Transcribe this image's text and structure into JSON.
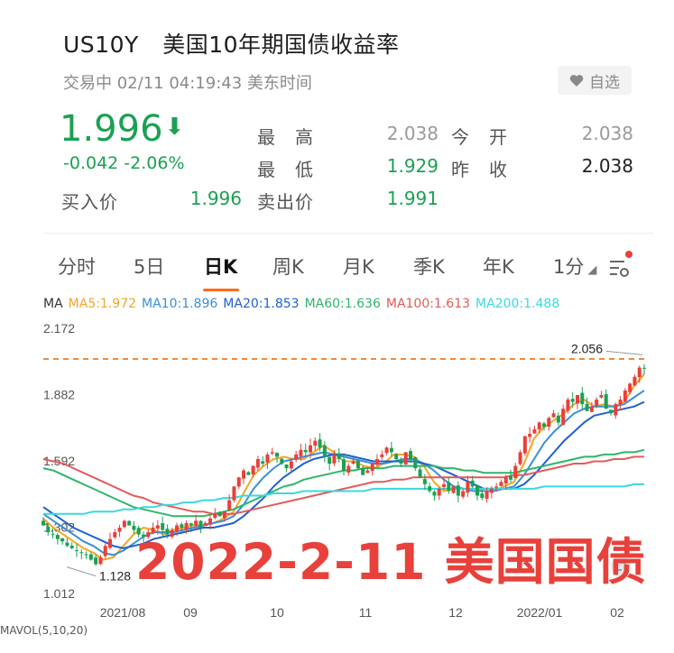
{
  "header": {
    "symbol": "US10Y",
    "name": "美国10年期国债收益率",
    "status": "交易中 02/11 04:19:43 美东时间",
    "watch_label": "自选"
  },
  "quote": {
    "last": "1.996",
    "arrow": "⬇",
    "change": "-0.042  -2.06%",
    "high_label": "最　高",
    "high": "2.038",
    "open_label": "今　开",
    "open": "2.038",
    "low_label": "最　低",
    "low": "1.929",
    "prev_close_label": "昨　收",
    "prev_close": "2.038",
    "bid_label": "买入价",
    "bid": "1.996",
    "ask_label": "卖出价",
    "ask": "1.991"
  },
  "tabs": [
    {
      "label": "分时"
    },
    {
      "label": "5日"
    },
    {
      "label": "日K",
      "active": true
    },
    {
      "label": "周K"
    },
    {
      "label": "月K"
    },
    {
      "label": "季K"
    },
    {
      "label": "年K"
    },
    {
      "label": "1分"
    }
  ],
  "ma_legend": [
    {
      "label": "MA",
      "color": "#333333"
    },
    {
      "label": "MA5:1.972",
      "color": "#f5a623"
    },
    {
      "label": "MA10:1.896",
      "color": "#3a8fd9"
    },
    {
      "label": "MA20:1.853",
      "color": "#1f5fd1"
    },
    {
      "label": "MA60:1.636",
      "color": "#2fb56a"
    },
    {
      "label": "MA100:1.613",
      "color": "#e35a5a"
    },
    {
      "label": "MA200:1.488",
      "color": "#3ad8e0"
    }
  ],
  "chart_data": {
    "type": "candlestick",
    "y_ticks": [
      "2.172",
      "1.882",
      "1.592",
      "1.302",
      "1.012"
    ],
    "ylim": [
      1.012,
      2.172
    ],
    "x_ticks": [
      "2021/08",
      "09",
      "10",
      "11",
      "12",
      "2022/01",
      "02"
    ],
    "reference_line": 2.038,
    "annotations": [
      {
        "text": "2.056",
        "value": 2.056
      },
      {
        "text": "1.128",
        "value": 1.128
      }
    ],
    "candle_closes": [
      1.31,
      1.28,
      1.27,
      1.25,
      1.24,
      1.22,
      1.21,
      1.2,
      1.19,
      1.18,
      1.16,
      1.14,
      1.17,
      1.22,
      1.25,
      1.28,
      1.3,
      1.33,
      1.31,
      1.29,
      1.27,
      1.26,
      1.28,
      1.3,
      1.31,
      1.29,
      1.27,
      1.29,
      1.31,
      1.3,
      1.32,
      1.31,
      1.33,
      1.3,
      1.32,
      1.34,
      1.36,
      1.35,
      1.37,
      1.42,
      1.48,
      1.52,
      1.55,
      1.53,
      1.57,
      1.6,
      1.58,
      1.62,
      1.63,
      1.61,
      1.58,
      1.56,
      1.59,
      1.62,
      1.64,
      1.63,
      1.66,
      1.68,
      1.65,
      1.61,
      1.58,
      1.62,
      1.6,
      1.55,
      1.57,
      1.59,
      1.56,
      1.53,
      1.55,
      1.58,
      1.6,
      1.62,
      1.65,
      1.63,
      1.6,
      1.58,
      1.63,
      1.6,
      1.56,
      1.52,
      1.49,
      1.46,
      1.44,
      1.47,
      1.49,
      1.46,
      1.48,
      1.44,
      1.46,
      1.5,
      1.48,
      1.44,
      1.43,
      1.46,
      1.47,
      1.48,
      1.5,
      1.52,
      1.51,
      1.57,
      1.63,
      1.7,
      1.71,
      1.73,
      1.76,
      1.74,
      1.78,
      1.8,
      1.76,
      1.82,
      1.86,
      1.85,
      1.88,
      1.84,
      1.81,
      1.83,
      1.86,
      1.88,
      1.82,
      1.8,
      1.84,
      1.86,
      1.9,
      1.93,
      1.96,
      2.0,
      1.996
    ],
    "ma_series": [
      {
        "name": "MA5",
        "color": "#f5a623",
        "values": [
          1.34,
          1.3,
          1.27,
          1.24,
          1.21,
          1.19,
          1.16,
          1.17,
          1.22,
          1.27,
          1.3,
          1.29,
          1.27,
          1.29,
          1.3,
          1.31,
          1.31,
          1.32,
          1.34,
          1.37,
          1.45,
          1.53,
          1.57,
          1.6,
          1.61,
          1.6,
          1.6,
          1.63,
          1.66,
          1.63,
          1.59,
          1.59,
          1.57,
          1.56,
          1.58,
          1.62,
          1.62,
          1.61,
          1.57,
          1.5,
          1.46,
          1.47,
          1.47,
          1.47,
          1.46,
          1.46,
          1.48,
          1.5,
          1.58,
          1.69,
          1.74,
          1.77,
          1.8,
          1.84,
          1.86,
          1.83,
          1.84,
          1.83,
          1.85,
          1.92,
          1.97
        ]
      },
      {
        "name": "MA10",
        "color": "#3a8fd9",
        "values": [
          1.36,
          1.33,
          1.3,
          1.27,
          1.24,
          1.22,
          1.19,
          1.18,
          1.2,
          1.23,
          1.26,
          1.28,
          1.28,
          1.28,
          1.29,
          1.3,
          1.31,
          1.32,
          1.33,
          1.35,
          1.4,
          1.47,
          1.52,
          1.56,
          1.59,
          1.6,
          1.61,
          1.62,
          1.63,
          1.62,
          1.61,
          1.6,
          1.59,
          1.58,
          1.58,
          1.59,
          1.6,
          1.6,
          1.58,
          1.55,
          1.51,
          1.48,
          1.47,
          1.46,
          1.46,
          1.46,
          1.47,
          1.48,
          1.53,
          1.6,
          1.67,
          1.72,
          1.76,
          1.8,
          1.82,
          1.83,
          1.83,
          1.83,
          1.84,
          1.87,
          1.9
        ]
      },
      {
        "name": "MA20",
        "color": "#1f5fd1",
        "values": [
          1.39,
          1.36,
          1.33,
          1.3,
          1.28,
          1.26,
          1.24,
          1.22,
          1.21,
          1.22,
          1.23,
          1.25,
          1.26,
          1.27,
          1.28,
          1.29,
          1.3,
          1.3,
          1.31,
          1.32,
          1.35,
          1.39,
          1.43,
          1.48,
          1.52,
          1.55,
          1.58,
          1.6,
          1.61,
          1.62,
          1.62,
          1.61,
          1.6,
          1.59,
          1.59,
          1.59,
          1.59,
          1.59,
          1.58,
          1.57,
          1.55,
          1.53,
          1.51,
          1.49,
          1.47,
          1.47,
          1.47,
          1.47,
          1.49,
          1.53,
          1.58,
          1.63,
          1.68,
          1.72,
          1.76,
          1.79,
          1.8,
          1.81,
          1.82,
          1.83,
          1.85
        ]
      },
      {
        "name": "MA60",
        "color": "#2fb56a",
        "values": [
          1.56,
          1.55,
          1.53,
          1.51,
          1.49,
          1.47,
          1.45,
          1.43,
          1.41,
          1.39,
          1.38,
          1.37,
          1.36,
          1.35,
          1.35,
          1.35,
          1.35,
          1.36,
          1.37,
          1.38,
          1.4,
          1.42,
          1.44,
          1.46,
          1.48,
          1.49,
          1.51,
          1.52,
          1.53,
          1.54,
          1.55,
          1.55,
          1.56,
          1.56,
          1.56,
          1.57,
          1.57,
          1.57,
          1.57,
          1.57,
          1.56,
          1.56,
          1.55,
          1.55,
          1.54,
          1.54,
          1.54,
          1.54,
          1.55,
          1.56,
          1.57,
          1.58,
          1.59,
          1.6,
          1.61,
          1.61,
          1.62,
          1.62,
          1.63,
          1.63,
          1.64
        ]
      },
      {
        "name": "MA100",
        "color": "#e35a5a",
        "values": [
          1.6,
          1.59,
          1.58,
          1.56,
          1.54,
          1.52,
          1.5,
          1.48,
          1.46,
          1.44,
          1.43,
          1.41,
          1.4,
          1.39,
          1.38,
          1.37,
          1.37,
          1.36,
          1.36,
          1.36,
          1.37,
          1.38,
          1.39,
          1.4,
          1.41,
          1.42,
          1.43,
          1.44,
          1.45,
          1.46,
          1.47,
          1.48,
          1.49,
          1.5,
          1.5,
          1.51,
          1.51,
          1.52,
          1.52,
          1.52,
          1.52,
          1.52,
          1.52,
          1.52,
          1.52,
          1.52,
          1.52,
          1.53,
          1.53,
          1.54,
          1.55,
          1.56,
          1.57,
          1.58,
          1.58,
          1.59,
          1.59,
          1.6,
          1.6,
          1.61,
          1.61
        ]
      },
      {
        "name": "MA200",
        "color": "#3ad8e0",
        "values": [
          1.36,
          1.36,
          1.36,
          1.36,
          1.36,
          1.37,
          1.37,
          1.37,
          1.38,
          1.38,
          1.39,
          1.39,
          1.4,
          1.4,
          1.41,
          1.41,
          1.42,
          1.42,
          1.43,
          1.43,
          1.44,
          1.44,
          1.44,
          1.45,
          1.45,
          1.45,
          1.46,
          1.46,
          1.46,
          1.46,
          1.46,
          1.46,
          1.46,
          1.47,
          1.47,
          1.47,
          1.47,
          1.47,
          1.47,
          1.47,
          1.47,
          1.47,
          1.47,
          1.47,
          1.47,
          1.47,
          1.47,
          1.47,
          1.47,
          1.47,
          1.48,
          1.48,
          1.48,
          1.48,
          1.48,
          1.48,
          1.48,
          1.48,
          1.48,
          1.49,
          1.49
        ]
      }
    ]
  },
  "watermark": "2022-2-11 美国国债",
  "bottom_label": "MAVOL(5,10,20)"
}
